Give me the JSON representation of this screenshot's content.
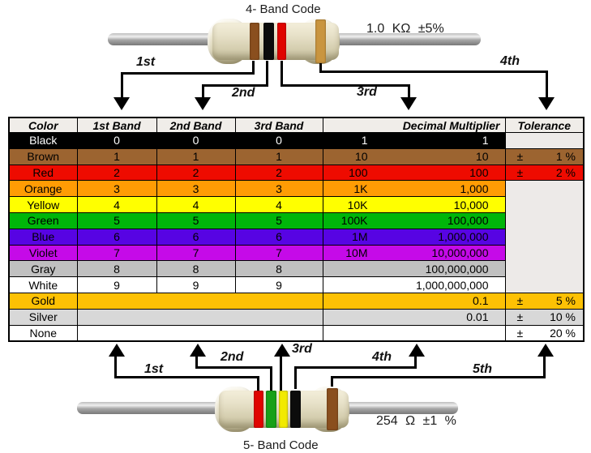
{
  "top": {
    "title": "4- Band Code",
    "value_label": "1.0 KΩ ±5%",
    "arrows": [
      "1st",
      "2nd",
      "3rd",
      "4th"
    ],
    "resistor_bands": [
      "brown",
      "black",
      "red",
      "gold"
    ]
  },
  "bottom": {
    "title": "5- Band Code",
    "value_label": "254 Ω ±1 %",
    "arrows": [
      "1st",
      "2nd",
      "3rd",
      "4th",
      "5th"
    ],
    "resistor_bands": [
      "red",
      "green",
      "yellow",
      "black",
      "brown"
    ]
  },
  "table": {
    "headers": [
      "Color",
      "1st Band",
      "2nd Band",
      "3rd Band",
      "Decimal Multiplier",
      "Tolerance"
    ],
    "plus_minus": "±",
    "rows": [
      {
        "name": "Black",
        "key": "black",
        "fg": "#ffffff",
        "bands": [
          "0",
          "0",
          "0"
        ],
        "ms": "1",
        "ml": "1",
        "tol": null
      },
      {
        "name": "Brown",
        "key": "brown",
        "bands": [
          "1",
          "1",
          "1"
        ],
        "ms": "10",
        "ml": "10",
        "tol": "1 %"
      },
      {
        "name": "Red",
        "key": "red",
        "bands": [
          "2",
          "2",
          "2"
        ],
        "ms": "100",
        "ml": "100",
        "tol": "2 %"
      },
      {
        "name": "Orange",
        "key": "orange",
        "bands": [
          "3",
          "3",
          "3"
        ],
        "ms": "1K",
        "ml": "1,000",
        "tol": "merged"
      },
      {
        "name": "Yellow",
        "key": "yellow",
        "bands": [
          "4",
          "4",
          "4"
        ],
        "ms": "10K",
        "ml": "10,000"
      },
      {
        "name": "Green",
        "key": "green",
        "bands": [
          "5",
          "5",
          "5"
        ],
        "ms": "100K",
        "ml": "100,000"
      },
      {
        "name": "Blue",
        "key": "blue",
        "bands": [
          "6",
          "6",
          "6"
        ],
        "ms": "1M",
        "ml": "1,000,000"
      },
      {
        "name": "Violet",
        "key": "violet",
        "bands": [
          "7",
          "7",
          "7"
        ],
        "ms": "10M",
        "ml": "10,000,000"
      },
      {
        "name": "Gray",
        "key": "gray",
        "bands": [
          "8",
          "8",
          "8"
        ],
        "ms": "",
        "ml": "100,000,000"
      },
      {
        "name": "White",
        "key": "white",
        "bands": [
          "9",
          "9",
          "9"
        ],
        "ms": "",
        "ml": "1,000,000,000"
      },
      {
        "name": "Gold",
        "key": "gold",
        "bands": null,
        "ms": "",
        "ml": "0.1",
        "tol": "5 %"
      },
      {
        "name": "Silver",
        "key": "silver",
        "bands": null,
        "ms": "",
        "ml": "0.01",
        "tol": "10 %"
      },
      {
        "name": "None",
        "key": "none",
        "bands": null,
        "ms": "",
        "ml": "",
        "tol": "20 %"
      }
    ]
  },
  "colors": {
    "palette": {
      "black": "#000000",
      "brown": "#9c6430",
      "red": "#ee0b00",
      "orange": "#ff9c04",
      "yellow": "#ffff00",
      "green": "#00b60a",
      "blue": "#5704e3",
      "violet": "#c50ae8",
      "gray": "#c0c0c0",
      "white": "#ffffff",
      "gold": "#fdc104",
      "silver": "#d8d8d8",
      "none": "#ffffff",
      "empty": "#edeae8",
      "header_bg": "#f0ede9"
    },
    "band_palette": {
      "brown": "#8a4f1e",
      "black": "#0c0c0c",
      "red": "#e00400",
      "gold": "#c9953f",
      "green": "#18a018",
      "yellow": "#f2ea00"
    }
  }
}
